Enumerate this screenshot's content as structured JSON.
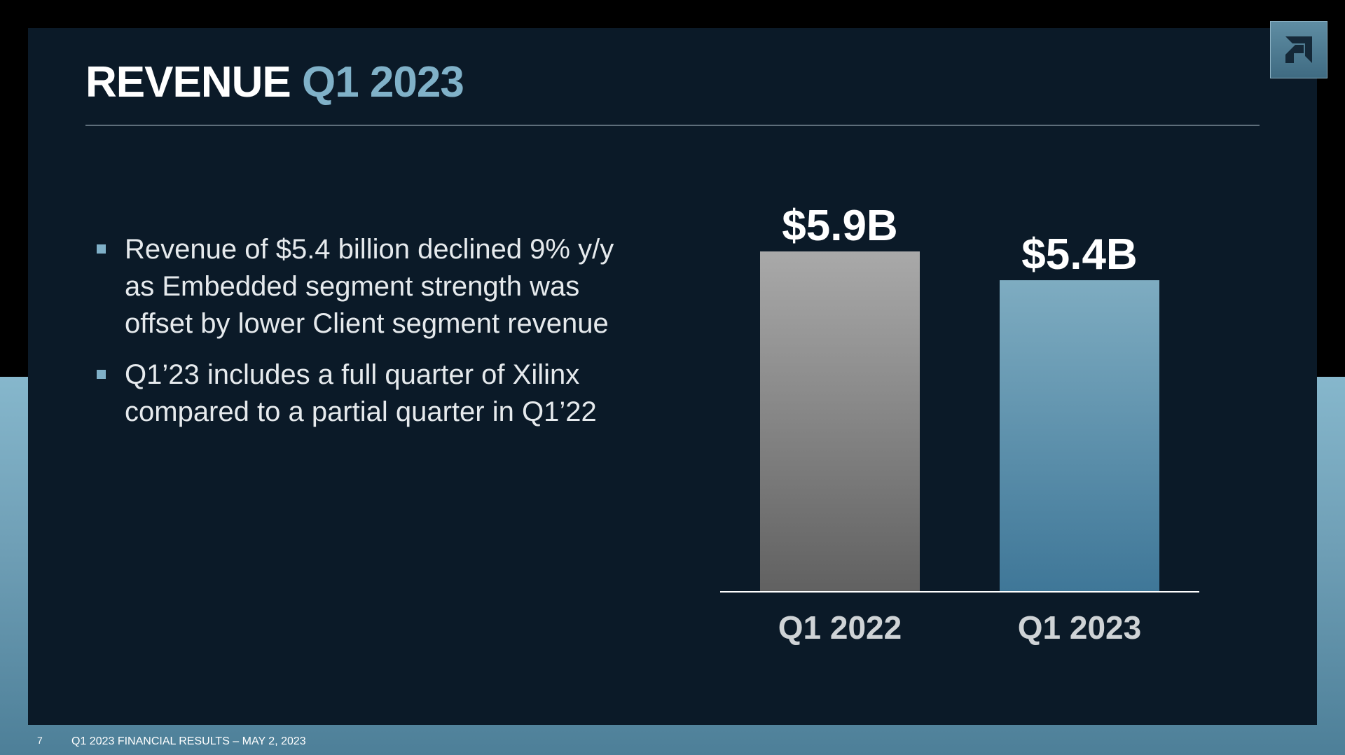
{
  "slide": {
    "title_white": "REVENUE",
    "title_blue": "Q1 2023",
    "bullets": [
      "Revenue of $5.4 billion declined 9% y/y as Embedded segment strength was offset by lower Client segment revenue",
      "Q1’23 includes a full quarter of Xilinx compared to a partial quarter in Q1’22"
    ],
    "logo_icon": "amd-logo-icon"
  },
  "footer": {
    "page_number": "7",
    "text": "Q1 2023 FINANCIAL RESULTS – MAY 2, 2023"
  },
  "colors": {
    "background": "#0b1a28",
    "accent_blue": "#80b1c8",
    "bar_q1_2022": "#8f8f8f",
    "bar_q1_2023": "#6a9fbb"
  },
  "chart_data": {
    "type": "bar",
    "title": "",
    "xlabel": "",
    "ylabel": "",
    "unit": "$B",
    "categories": [
      "Q1 2022",
      "Q1 2023"
    ],
    "values": [
      5.9,
      5.4
    ],
    "data_labels": [
      "$5.9B",
      "$5.4B"
    ],
    "ylim": [
      0,
      5.9
    ],
    "grid": false,
    "legend": "none"
  }
}
